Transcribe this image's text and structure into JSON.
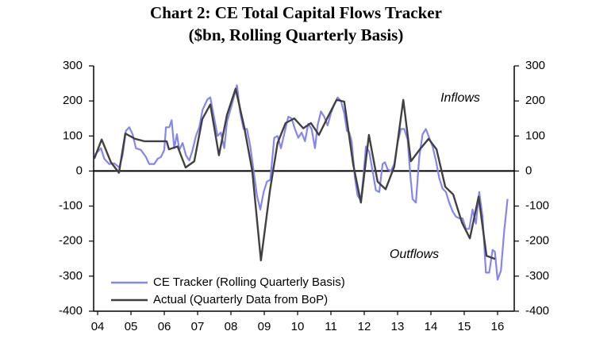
{
  "chart_data": {
    "type": "line",
    "title": "Chart 2: CE Total Capital Flows Tracker",
    "subtitle": "($bn, Rolling Quarterly Basis)",
    "annotations": [
      "Inflows",
      "Outflows"
    ],
    "xlim": [
      2003.88,
      2016.5
    ],
    "xticks": [
      {
        "value": 2004,
        "label": "04"
      },
      {
        "value": 2005,
        "label": "05"
      },
      {
        "value": 2006,
        "label": "06"
      },
      {
        "value": 2007,
        "label": "07"
      },
      {
        "value": 2008,
        "label": "08"
      },
      {
        "value": 2009,
        "label": "09"
      },
      {
        "value": 2010,
        "label": "10"
      },
      {
        "value": 2011,
        "label": "11"
      },
      {
        "value": 2012,
        "label": "12"
      },
      {
        "value": 2013,
        "label": "13"
      },
      {
        "value": 2014,
        "label": "14"
      },
      {
        "value": 2015,
        "label": "15"
      },
      {
        "value": 2016,
        "label": "16"
      }
    ],
    "ylim": [
      -400,
      300
    ],
    "yticks": [
      -400,
      -300,
      -200,
      -100,
      0,
      100,
      200,
      300
    ],
    "y2lim": [
      -400,
      300
    ],
    "y2ticks": [
      -400,
      -300,
      -200,
      -100,
      0,
      100,
      200,
      300
    ],
    "legend": "lower left",
    "series": [
      {
        "name": "CE Tracker (Rolling Quarterly Basis)",
        "color": "#8585ee",
        "x": [
          2003.9,
          2004.1,
          2004.2,
          2004.35,
          2004.5,
          2004.65,
          2004.75,
          2004.85,
          2004.95,
          2005.05,
          2005.15,
          2005.3,
          2005.45,
          2005.55,
          2005.7,
          2005.8,
          2005.9,
          2006.0,
          2006.05,
          2006.15,
          2006.22,
          2006.3,
          2006.38,
          2006.45,
          2006.55,
          2006.65,
          2006.75,
          2006.85,
          2006.95,
          2007.05,
          2007.15,
          2007.3,
          2007.38,
          2007.5,
          2007.6,
          2007.7,
          2007.8,
          2007.88,
          2008.0,
          2008.1,
          2008.18,
          2008.28,
          2008.38,
          2008.48,
          2008.58,
          2008.68,
          2008.78,
          2008.88,
          2008.98,
          2009.08,
          2009.18,
          2009.3,
          2009.4,
          2009.5,
          2009.62,
          2009.72,
          2009.82,
          2009.92,
          2010.02,
          2010.12,
          2010.22,
          2010.32,
          2010.42,
          2010.52,
          2010.6,
          2010.7,
          2010.8,
          2010.9,
          2011.0,
          2011.1,
          2011.2,
          2011.3,
          2011.4,
          2011.48,
          2011.55,
          2011.62,
          2011.72,
          2011.8,
          2011.9,
          2011.98,
          2012.05,
          2012.15,
          2012.25,
          2012.35,
          2012.45,
          2012.55,
          2012.62,
          2012.7,
          2012.8,
          2012.9,
          2013.0,
          2013.1,
          2013.2,
          2013.3,
          2013.38,
          2013.45,
          2013.55,
          2013.65,
          2013.75,
          2013.85,
          2013.95,
          2014.05,
          2014.15,
          2014.25,
          2014.35,
          2014.45,
          2014.55,
          2014.65,
          2014.75,
          2014.85,
          2014.95,
          2015.05,
          2015.15,
          2015.25,
          2015.35,
          2015.45,
          2015.55,
          2015.65,
          2015.75,
          2015.85,
          2015.92,
          2016.0,
          2016.1,
          2016.2,
          2016.3
        ],
        "values": [
          45,
          65,
          35,
          20,
          22,
          10,
          45,
          115,
          125,
          105,
          65,
          60,
          40,
          20,
          20,
          35,
          40,
          60,
          125,
          125,
          145,
          65,
          105,
          60,
          80,
          45,
          30,
          60,
          100,
          125,
          175,
          205,
          210,
          150,
          100,
          110,
          65,
          140,
          180,
          215,
          245,
          165,
          120,
          120,
          70,
          0,
          -70,
          -110,
          -60,
          -30,
          -25,
          95,
          100,
          65,
          115,
          155,
          150,
          120,
          95,
          110,
          85,
          135,
          120,
          65,
          130,
          170,
          155,
          130,
          165,
          190,
          210,
          200,
          165,
          115,
          110,
          85,
          -20,
          -70,
          -85,
          -10,
          70,
          55,
          0,
          -55,
          -60,
          20,
          25,
          5,
          0,
          20,
          80,
          120,
          120,
          90,
          -10,
          -80,
          -90,
          40,
          105,
          120,
          95,
          70,
          30,
          -20,
          -50,
          -60,
          -90,
          -115,
          -130,
          -135,
          -135,
          -165,
          -165,
          -110,
          -150,
          -60,
          -130,
          -290,
          -290,
          -225,
          -230,
          -310,
          -285,
          -170,
          -80
        ]
      },
      {
        "name": "Actual (Quarterly Data from BoP)",
        "color": "#404040",
        "x": [
          2003.9,
          2004.12,
          2004.4,
          2004.64,
          2004.83,
          2005.12,
          2005.4,
          2005.74,
          2006.07,
          2006.14,
          2006.4,
          2006.64,
          2006.9,
          2007.14,
          2007.38,
          2007.64,
          2007.88,
          2008.14,
          2008.4,
          2008.64,
          2008.9,
          2009.17,
          2009.4,
          2009.64,
          2009.9,
          2010.17,
          2010.4,
          2010.64,
          2010.9,
          2011.17,
          2011.4,
          2011.67,
          2011.9,
          2012.14,
          2012.4,
          2012.64,
          2012.9,
          2013.17,
          2013.4,
          2013.67,
          2013.93,
          2014.17,
          2014.43,
          2014.67,
          2014.93,
          2015.17,
          2015.43,
          2015.67,
          2015.93
        ],
        "values": [
          35,
          90,
          25,
          -5,
          107,
          92,
          85,
          85,
          85,
          62,
          70,
          10,
          28,
          148,
          190,
          45,
          160,
          235,
          125,
          0,
          -255,
          -55,
          80,
          137,
          150,
          122,
          137,
          103,
          153,
          203,
          198,
          17,
          -90,
          103,
          -30,
          -52,
          12,
          203,
          28,
          62,
          92,
          62,
          -45,
          -67,
          -147,
          -192,
          -73,
          -242,
          -251
        ]
      }
    ]
  }
}
